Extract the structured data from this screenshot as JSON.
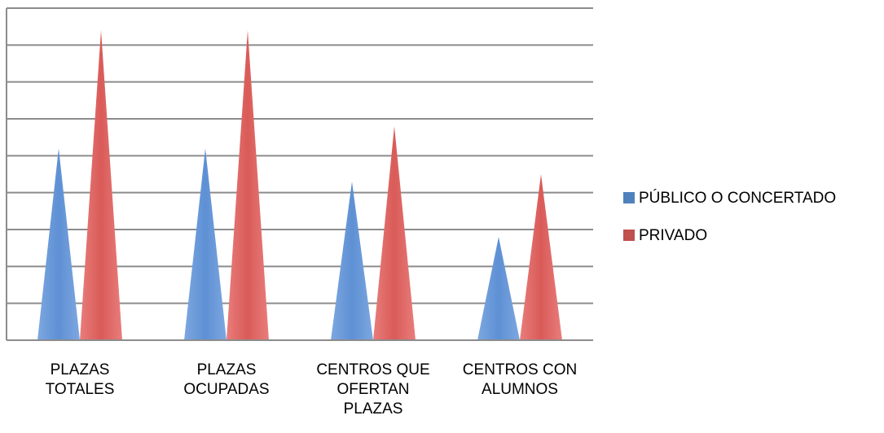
{
  "chart_data": {
    "type": "bar",
    "bar_shape": "cone",
    "title": "",
    "xlabel": "",
    "ylabel": "",
    "ylim": [
      0,
      9
    ],
    "y_ticks_visible": false,
    "grid": true,
    "legend_position": "right",
    "categories": [
      [
        "PLAZAS",
        "TOTALES"
      ],
      [
        "PLAZAS",
        "OCUPADAS"
      ],
      [
        "CENTROS QUE",
        "OFERTAN",
        "PLAZAS"
      ],
      [
        "CENTROS CON",
        "ALUMNOS"
      ]
    ],
    "series": [
      {
        "name": "PÚBLICO O CONCERTADO",
        "color": "#4f81bd",
        "values": [
          5.2,
          5.2,
          4.3,
          2.8
        ]
      },
      {
        "name": "PRIVADO",
        "color": "#c0504d",
        "values": [
          8.4,
          8.4,
          5.8,
          4.5
        ]
      }
    ]
  }
}
